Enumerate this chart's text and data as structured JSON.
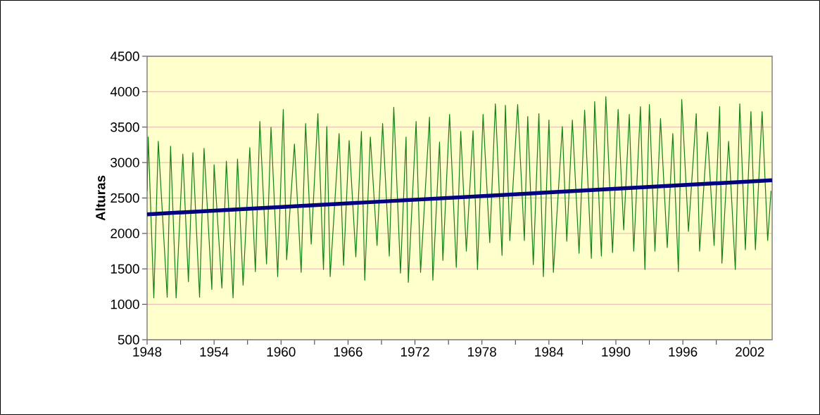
{
  "chart_data": {
    "type": "line",
    "ylabel": "Alturas",
    "xlim": [
      1948,
      2004
    ],
    "xticks": [
      1948,
      {
        "value": 1951,
        "label": null
      },
      1954,
      {
        "value": 1957,
        "label": null
      },
      1960,
      {
        "value": 1963,
        "label": null
      },
      1966,
      {
        "value": 1969,
        "label": null
      },
      1972,
      {
        "value": 1975,
        "label": null
      },
      1978,
      {
        "value": 1981,
        "label": null
      },
      1984,
      {
        "value": 1987,
        "label": null
      },
      1990,
      {
        "value": 1993,
        "label": null
      },
      1996,
      {
        "value": 1999,
        "label": null
      },
      2002
    ],
    "ylim": [
      500,
      4500
    ],
    "yticks": [
      500,
      1000,
      1500,
      2000,
      2500,
      3000,
      3500,
      4000,
      4500
    ],
    "grid": "y",
    "marker": "none",
    "line_style": "solid",
    "series": [
      {
        "color": "#138013",
        "x": [
          1948.0,
          1948.1,
          1948.6,
          1949.0,
          1949.8,
          1950.1,
          1950.6,
          1951.2,
          1951.7,
          1952.1,
          1952.7,
          1953.1,
          1953.8,
          1954.0,
          1954.7,
          1955.1,
          1955.7,
          1956.1,
          1956.6,
          1957.2,
          1957.7,
          1958.1,
          1958.7,
          1959.1,
          1959.7,
          1960.2,
          1960.5,
          1961.2,
          1961.8,
          1962.2,
          1962.7,
          1963.3,
          1963.8,
          1964.1,
          1964.4,
          1965.2,
          1965.6,
          1966.1,
          1966.7,
          1967.2,
          1967.5,
          1968.0,
          1968.6,
          1969.1,
          1969.7,
          1970.1,
          1970.7,
          1971.2,
          1971.4,
          1972.1,
          1972.5,
          1973.3,
          1973.6,
          1974.2,
          1974.5,
          1975.1,
          1975.7,
          1976.1,
          1976.6,
          1977.2,
          1977.6,
          1978.1,
          1978.7,
          1979.2,
          1979.8,
          1980.1,
          1980.5,
          1981.2,
          1981.8,
          1982.1,
          1982.6,
          1983.1,
          1983.5,
          1984.0,
          1984.4,
          1985.2,
          1985.6,
          1986.1,
          1986.7,
          1987.2,
          1987.8,
          1988.1,
          1988.7,
          1989.1,
          1989.7,
          1990.2,
          1990.7,
          1991.2,
          1991.6,
          1992.2,
          1992.6,
          1993.0,
          1993.5,
          1994.0,
          1994.6,
          1995.1,
          1995.6,
          1995.9,
          1996.5,
          1997.2,
          1997.5,
          1998.2,
          1998.8,
          1999.3,
          1999.5,
          2000.1,
          2000.7,
          2001.1,
          2001.6,
          2002.1,
          2002.5,
          2003.1,
          2003.6,
          2003.9
        ],
        "values": [
          2600,
          3360,
          1090,
          3300,
          1100,
          3230,
          1090,
          3120,
          1320,
          3140,
          1100,
          3200,
          1210,
          2970,
          1230,
          3020,
          1090,
          3050,
          1270,
          3210,
          1460,
          3580,
          1570,
          3500,
          1390,
          3750,
          1630,
          3260,
          1450,
          3550,
          1850,
          3690,
          1490,
          3510,
          1390,
          3410,
          1550,
          3310,
          1670,
          3440,
          1340,
          3360,
          1830,
          3550,
          1680,
          3780,
          1440,
          3360,
          1310,
          3580,
          1450,
          3640,
          1340,
          3290,
          1620,
          3680,
          1520,
          3440,
          1750,
          3450,
          1490,
          3680,
          1870,
          3830,
          1690,
          3810,
          1900,
          3820,
          1900,
          3650,
          1560,
          3690,
          1390,
          3600,
          1450,
          3510,
          1890,
          3600,
          1720,
          3740,
          1650,
          3860,
          1680,
          3930,
          1730,
          3750,
          2050,
          3680,
          1750,
          3790,
          1490,
          3820,
          1750,
          3620,
          1800,
          3410,
          1460,
          3890,
          2030,
          3690,
          1750,
          3430,
          1830,
          3790,
          1580,
          3300,
          1490,
          3830,
          1770,
          3720,
          1770,
          3720,
          1900,
          2600
        ]
      },
      {
        "color": "#000080",
        "x": [
          1948,
          2004
        ],
        "values": [
          2270,
          2750
        ]
      }
    ]
  }
}
